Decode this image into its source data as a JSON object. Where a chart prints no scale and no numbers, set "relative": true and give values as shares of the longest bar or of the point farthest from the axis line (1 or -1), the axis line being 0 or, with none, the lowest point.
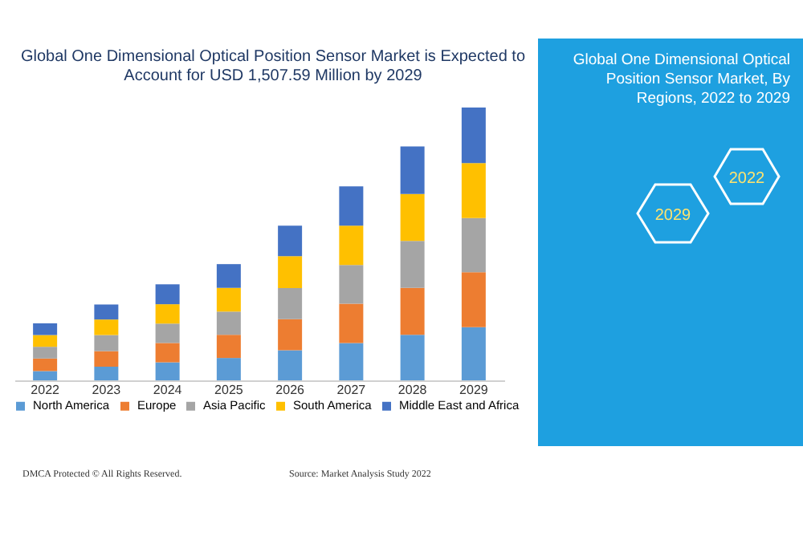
{
  "chart_data": {
    "type": "bar",
    "title": "Global One Dimensional Optical Position Sensor Market is Expected to Account for USD 1,507.59 Million by 2029",
    "subtitle": "Global One Dimensional Optical Position Sensor Market, By Regions, 2022 to 2029",
    "annotations": [
      "2022",
      "2029",
      "DMCA Protected © All Rights Reserved.",
      "Source: Market Analysis Study 2022"
    ],
    "categories": [
      "2022",
      "2023",
      "2024",
      "2025",
      "2026",
      "2027",
      "2028",
      "2029"
    ],
    "stacked": true,
    "relative": true,
    "legend": "bottom",
    "grid": false,
    "series": [
      {
        "name": "North America",
        "color": "#5b9bd5",
        "values": [
          0.034,
          0.05,
          0.066,
          0.082,
          0.11,
          0.137,
          0.167,
          0.195
        ]
      },
      {
        "name": "Europe",
        "color": "#ed7d31",
        "values": [
          0.046,
          0.057,
          0.071,
          0.085,
          0.114,
          0.144,
          0.172,
          0.201
        ]
      },
      {
        "name": "Asia Pacific",
        "color": "#a5a5a5",
        "values": [
          0.043,
          0.059,
          0.071,
          0.085,
          0.114,
          0.142,
          0.172,
          0.199
        ]
      },
      {
        "name": "South America",
        "color": "#ffc000",
        "values": [
          0.043,
          0.057,
          0.071,
          0.087,
          0.117,
          0.144,
          0.172,
          0.201
        ]
      },
      {
        "name": "Middle East and Africa",
        "color": "#4472c4",
        "values": [
          0.043,
          0.055,
          0.073,
          0.087,
          0.112,
          0.144,
          0.174,
          0.204
        ]
      }
    ]
  }
}
